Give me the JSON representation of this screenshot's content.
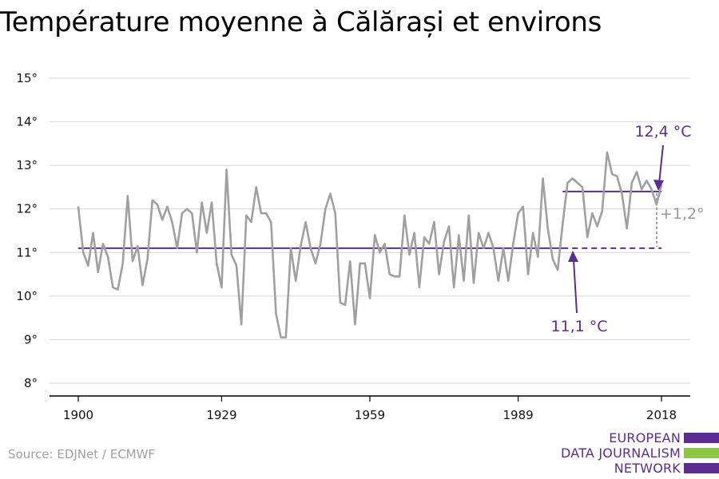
{
  "title": "Température moyenne à Călărași et environs",
  "source": "Source: EDJNet / ECMWF",
  "logo": {
    "lines": [
      "EUROPEAN",
      "DATA JOURNALISM",
      "NETWORK"
    ],
    "colors": [
      "#5c2d91",
      "#8dc63f",
      "#5c2d91"
    ]
  },
  "colors": {
    "series": "#a0a0a0",
    "reference": "#5c2d91",
    "gridline": "#dddddd",
    "axis": "#000000"
  },
  "chart_data": {
    "type": "line",
    "title": "Température moyenne à Călărași et environs",
    "xlabel": "",
    "ylabel": "",
    "xlim": [
      1900,
      2018
    ],
    "ylim": [
      8,
      15
    ],
    "x_ticks": [
      1900,
      1929,
      1959,
      1989,
      2018
    ],
    "y_ticks": [
      {
        "value": 8,
        "label": "8°"
      },
      {
        "value": 9,
        "label": "9°"
      },
      {
        "value": 10,
        "label": "10°"
      },
      {
        "value": 11,
        "label": "11°"
      },
      {
        "value": 12,
        "label": "12°"
      },
      {
        "value": 13,
        "label": "13°"
      },
      {
        "value": 14,
        "label": "14°"
      },
      {
        "value": 15,
        "label": "15°"
      }
    ],
    "grid": true,
    "x": [
      1900,
      1901,
      1902,
      1903,
      1904,
      1905,
      1906,
      1907,
      1908,
      1909,
      1910,
      1911,
      1912,
      1913,
      1914,
      1915,
      1916,
      1917,
      1918,
      1919,
      1920,
      1921,
      1922,
      1923,
      1924,
      1925,
      1926,
      1927,
      1928,
      1929,
      1930,
      1931,
      1932,
      1933,
      1934,
      1935,
      1936,
      1937,
      1938,
      1939,
      1940,
      1941,
      1942,
      1943,
      1944,
      1945,
      1946,
      1947,
      1948,
      1949,
      1950,
      1951,
      1952,
      1953,
      1954,
      1955,
      1956,
      1957,
      1958,
      1959,
      1960,
      1961,
      1962,
      1963,
      1964,
      1965,
      1966,
      1967,
      1968,
      1969,
      1970,
      1971,
      1972,
      1973,
      1974,
      1975,
      1976,
      1977,
      1978,
      1979,
      1980,
      1981,
      1982,
      1983,
      1984,
      1985,
      1986,
      1987,
      1988,
      1989,
      1990,
      1991,
      1992,
      1993,
      1994,
      1995,
      1996,
      1997,
      1998,
      1999,
      2000,
      2001,
      2002,
      2003,
      2004,
      2005,
      2006,
      2007,
      2008,
      2009,
      2010,
      2011,
      2012,
      2013,
      2014,
      2015,
      2016,
      2017,
      2018
    ],
    "series": [
      {
        "values": [
          12.05,
          11.0,
          10.7,
          11.45,
          10.55,
          11.2,
          10.9,
          10.2,
          10.15,
          10.75,
          12.3,
          10.8,
          11.15,
          10.25,
          10.85,
          12.2,
          12.1,
          11.75,
          12.05,
          11.7,
          11.1,
          11.9,
          12.0,
          11.9,
          11.0,
          12.15,
          11.45,
          12.15,
          10.75,
          10.2,
          12.9,
          10.95,
          10.7,
          9.35,
          11.85,
          11.7,
          12.5,
          11.9,
          11.9,
          11.7,
          9.6,
          9.05,
          9.05,
          11.1,
          10.35,
          11.15,
          11.7,
          11.1,
          10.75,
          11.2,
          12.0,
          12.35,
          11.9,
          9.85,
          9.8,
          10.8,
          9.35,
          10.75,
          10.75,
          9.95,
          11.4,
          11.0,
          11.2,
          10.5,
          10.45,
          10.45,
          11.85,
          10.95,
          11.45,
          10.2,
          11.35,
          11.2,
          11.7,
          10.5,
          11.25,
          11.6,
          10.2,
          11.4,
          10.35,
          11.85,
          10.3,
          11.45,
          11.1,
          11.45,
          11.1,
          10.35,
          11.1,
          10.35,
          11.2,
          11.9,
          12.05,
          10.5,
          11.45,
          10.9,
          12.7,
          11.55,
          10.85,
          10.6,
          11.65,
          12.6,
          12.7,
          12.6,
          12.5,
          11.35,
          11.9,
          11.6,
          11.95,
          13.3,
          12.8,
          12.75,
          12.35,
          11.55,
          12.6,
          12.85,
          12.45,
          12.65,
          12.45,
          12.1,
          12.55
        ]
      }
    ],
    "reference_lines": [
      {
        "label": "11,1 °C",
        "value": 11.1,
        "from": 1900,
        "to": 2018,
        "dashed_from": 1998
      },
      {
        "label": "12,4 °C",
        "value": 12.4,
        "from": 1998,
        "to": 2018
      }
    ],
    "difference_label": "+1,2°"
  }
}
